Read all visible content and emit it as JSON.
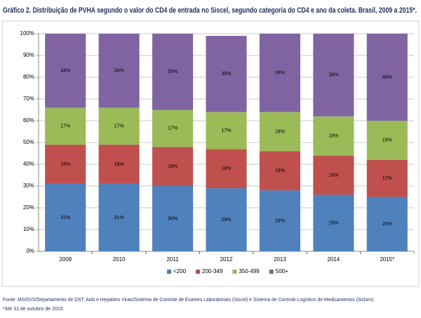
{
  "chart_data": {
    "type": "stacked-bar",
    "title": "Gráfico 2. Distribuição de PVHA segundo o valor do CD4 de entrada no Siscel, segundo categoria do CD4 e ano da coleta. Brasil, 2009 a 2015*.",
    "categories": [
      "2009",
      "2010",
      "2011",
      "2012",
      "2013",
      "2014",
      "2015*"
    ],
    "series": [
      {
        "name": "<200",
        "color": "#4f81bd",
        "values": [
          31,
          31,
          30,
          29,
          28,
          26,
          25
        ],
        "value_labels": [
          "31%",
          "31%",
          "30%",
          "29%",
          "28%",
          "26%",
          "25%"
        ]
      },
      {
        "name": "200-349",
        "color": "#c0504d",
        "values": [
          18,
          18,
          18,
          18,
          18,
          18,
          17
        ],
        "value_labels": [
          "18%",
          "18%",
          "18%",
          "18%",
          "18%",
          "18%",
          "17%"
        ]
      },
      {
        "name": "350-499",
        "color": "#9bbb59",
        "values": [
          17,
          17,
          17,
          17,
          18,
          18,
          18
        ],
        "value_labels": [
          "17%",
          "17%",
          "17%",
          "17%",
          "18%",
          "18%",
          "18%"
        ]
      },
      {
        "name": "500+",
        "color": "#8064a2",
        "values": [
          34,
          34,
          35,
          35,
          36,
          38,
          40
        ],
        "value_labels": [
          "34%",
          "34%",
          "35%",
          "35%",
          "36%",
          "38%",
          "40%"
        ]
      }
    ],
    "ylim": [
      0,
      100
    ],
    "yticks": [
      {
        "value": 0,
        "label": "0%"
      },
      {
        "value": 10,
        "label": "10%"
      },
      {
        "value": 20,
        "label": "20%"
      },
      {
        "value": 30,
        "label": "30%"
      },
      {
        "value": 40,
        "label": "40%"
      },
      {
        "value": 50,
        "label": "50%"
      },
      {
        "value": 60,
        "label": "60%"
      },
      {
        "value": 70,
        "label": "70%"
      },
      {
        "value": 80,
        "label": "80%"
      },
      {
        "value": 90,
        "label": "90%"
      },
      {
        "value": 100,
        "label": "100%"
      }
    ],
    "grid": true,
    "legend": "bottom",
    "source": "Fonte: MS/SVS/Departamento de DST, Aids e Hepatites Virais/Sistema de Controle de Exames Laboratoriais (Siscel) e Sistema de Controle Logístico de Medicamentos (Siclom).",
    "footnote": "*Até 31 de outubro de 2015."
  }
}
